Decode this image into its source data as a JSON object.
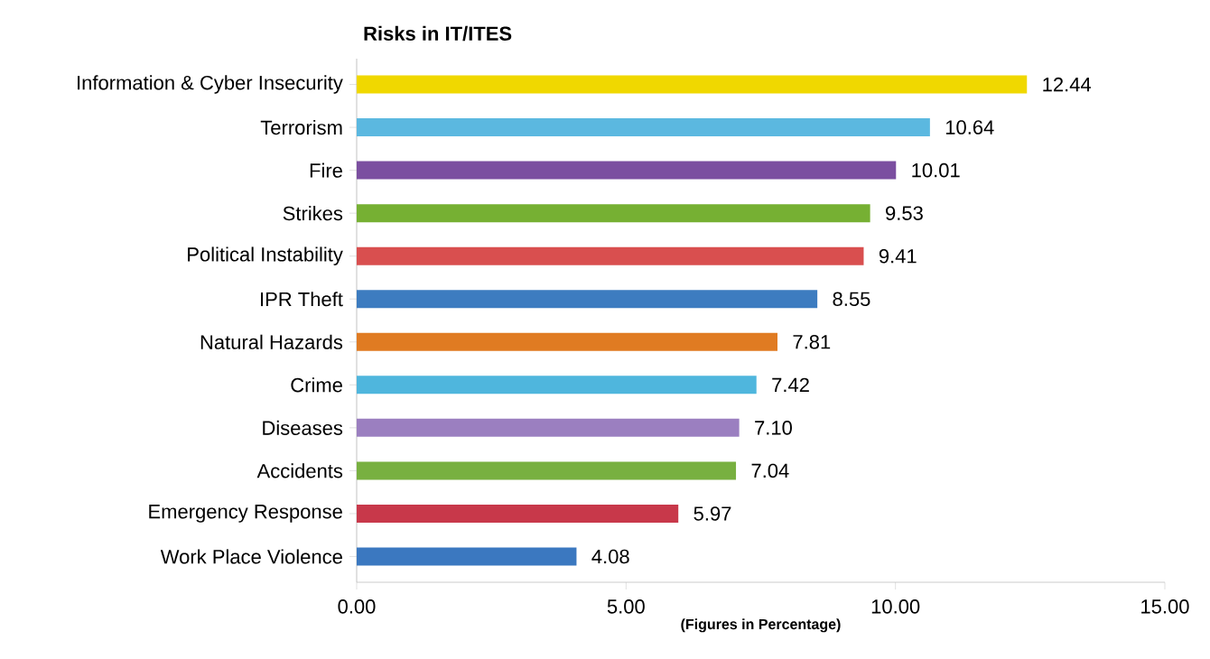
{
  "chart_data": {
    "type": "bar",
    "orientation": "horizontal",
    "title": "Risks in IT/ITES",
    "xlabel": "(Figures in Percentage)",
    "categories": [
      "Information & Cyber Insecurity",
      "Terrorism",
      "Fire",
      "Strikes",
      "Political Instability",
      "IPR Theft",
      "Natural Hazards",
      "Crime",
      "Diseases",
      "Accidents",
      "Emergency Response",
      "Work Place Violence"
    ],
    "values": [
      12.44,
      10.64,
      10.01,
      9.53,
      9.41,
      8.55,
      7.81,
      7.42,
      7.1,
      7.04,
      5.97,
      4.08
    ],
    "value_labels": [
      "12.44",
      "10.64",
      "10.01",
      "9.53",
      "9.41",
      "8.55",
      "7.81",
      "7.42",
      "7.10",
      "7.04",
      "5.97",
      "4.08"
    ],
    "colors": [
      "#f0d800",
      "#5bb8e0",
      "#7b4fa0",
      "#76b033",
      "#d94f4f",
      "#3d7cc0",
      "#e07b22",
      "#4fb6dd",
      "#9b7fc0",
      "#78b040",
      "#c8384a",
      "#3b78c0"
    ],
    "xlim": [
      0,
      15
    ],
    "xticks": [
      {
        "value": 0,
        "label": "0.00"
      },
      {
        "value": 5,
        "label": "5.00"
      },
      {
        "value": 10,
        "label": "10.00"
      },
      {
        "value": 15,
        "label": "15.00"
      }
    ],
    "grid": false
  }
}
